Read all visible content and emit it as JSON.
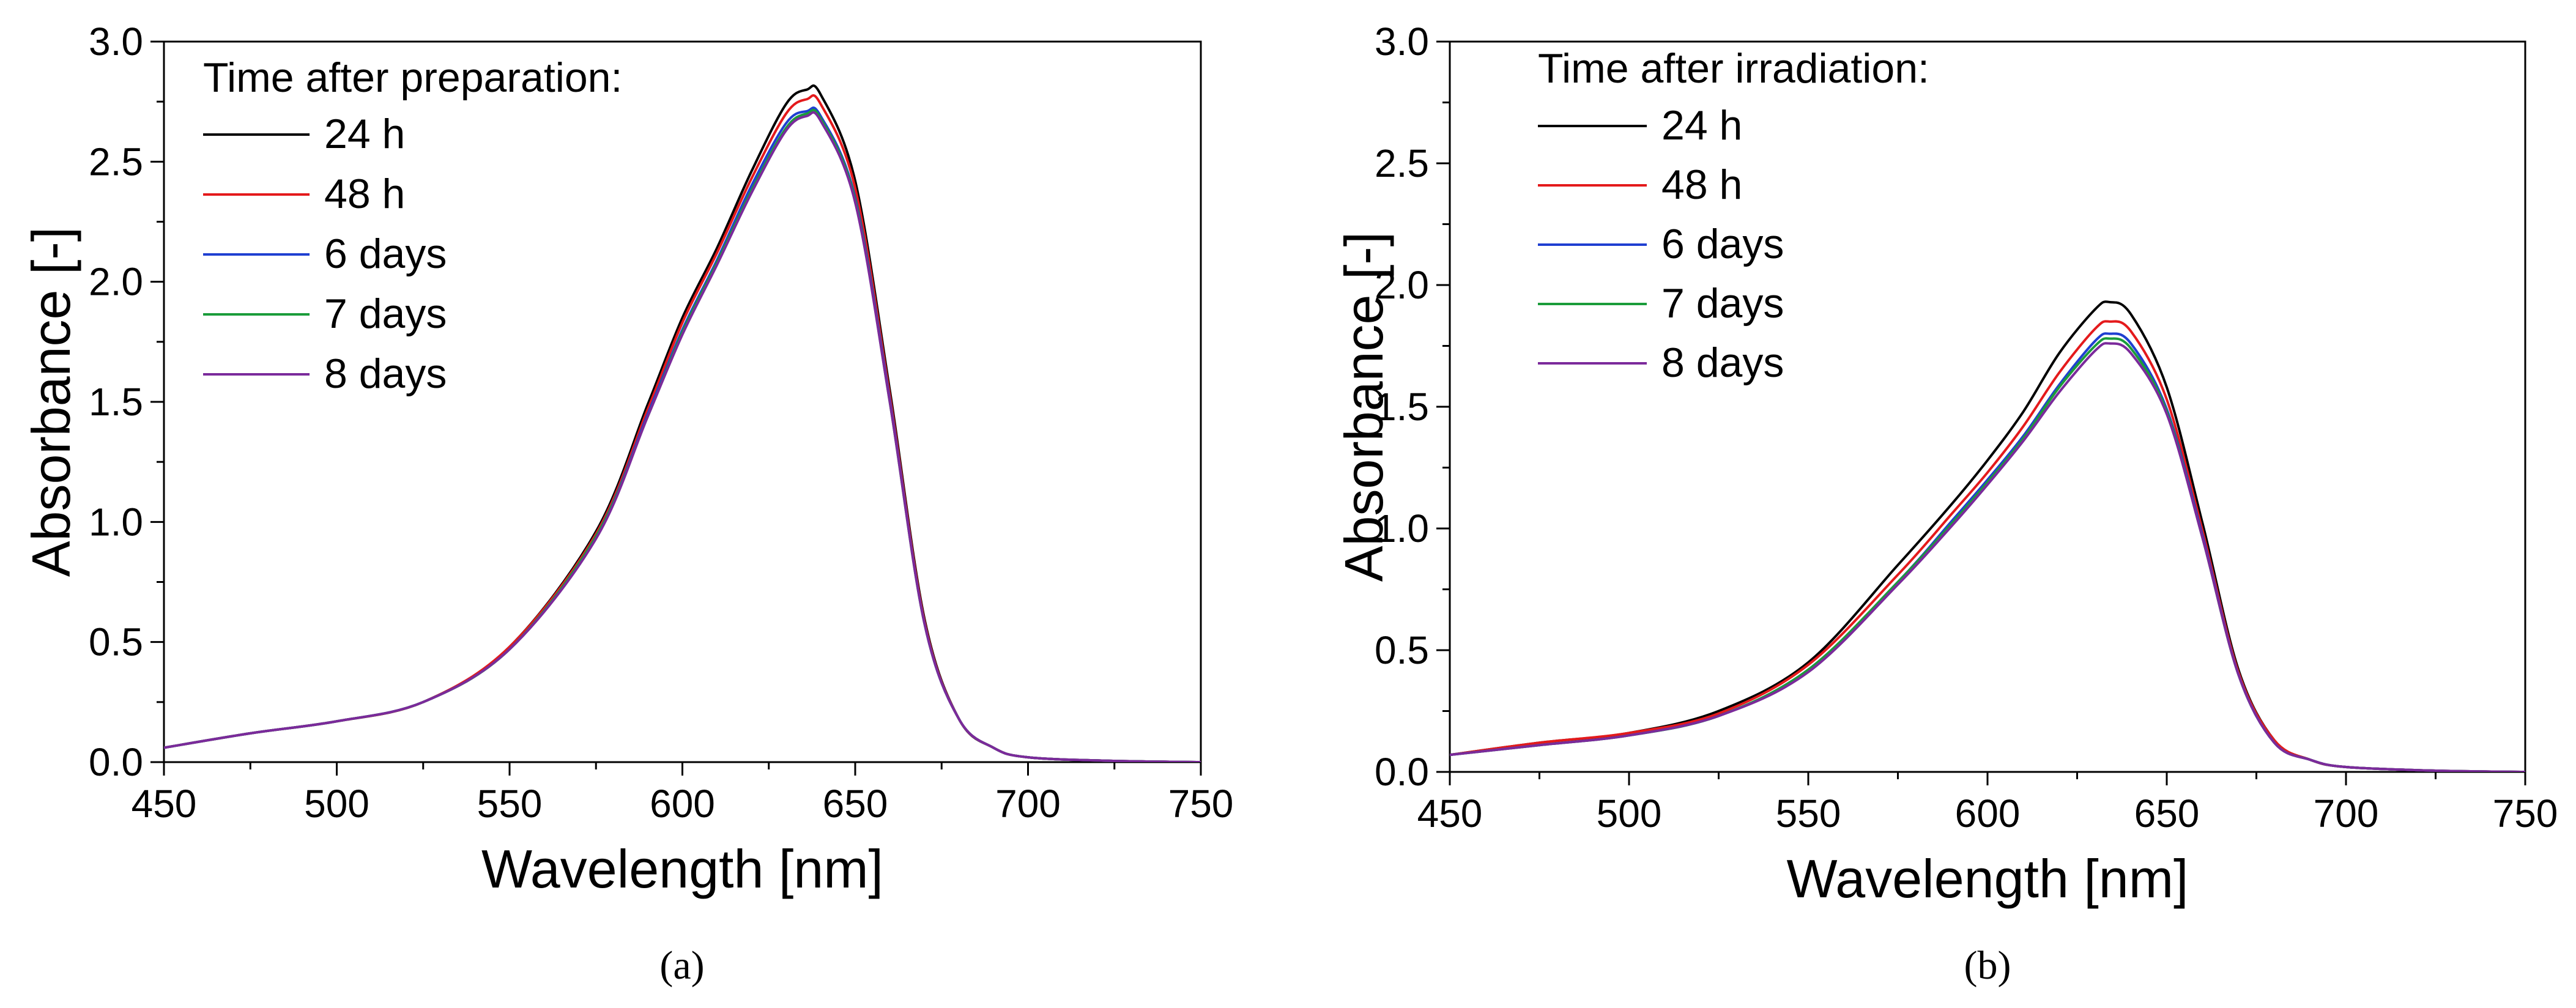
{
  "chart_data": [
    {
      "type": "line",
      "panel_label": "(a)",
      "xlabel": "Wavelength [nm]",
      "ylabel": "Absorbance [-]",
      "xlim": [
        450,
        750
      ],
      "ylim": [
        0,
        3.0
      ],
      "x_ticks": [
        "450",
        "500",
        "550",
        "600",
        "650",
        "700",
        "750"
      ],
      "y_ticks": [
        "0.0",
        "0.5",
        "1.0",
        "1.5",
        "2.0",
        "2.5",
        "3.0"
      ],
      "grid": false,
      "legend_title": "Time after preparation:",
      "legend_position": "top-left",
      "x": [
        450,
        475,
        500,
        525,
        550,
        575,
        590,
        600,
        610,
        620,
        630,
        636,
        640,
        650,
        660,
        670,
        680,
        690,
        700,
        725,
        750
      ],
      "series": [
        {
          "name": "24 h",
          "color": "#000000",
          "values": [
            0.06,
            0.12,
            0.17,
            0.25,
            0.48,
            0.96,
            1.49,
            1.85,
            2.14,
            2.46,
            2.74,
            2.8,
            2.78,
            2.42,
            1.55,
            0.6,
            0.18,
            0.06,
            0.02,
            0.005,
            0.0
          ]
        },
        {
          "name": "48 h",
          "color": "#e41a1c",
          "values": [
            0.06,
            0.12,
            0.17,
            0.25,
            0.48,
            0.95,
            1.47,
            1.83,
            2.12,
            2.43,
            2.7,
            2.76,
            2.74,
            2.39,
            1.53,
            0.59,
            0.18,
            0.06,
            0.02,
            0.005,
            0.0
          ]
        },
        {
          "name": "6 days",
          "color": "#1f3fd1",
          "values": [
            0.06,
            0.12,
            0.17,
            0.25,
            0.47,
            0.94,
            1.45,
            1.8,
            2.09,
            2.4,
            2.66,
            2.71,
            2.69,
            2.35,
            1.51,
            0.58,
            0.18,
            0.06,
            0.02,
            0.005,
            0.0
          ]
        },
        {
          "name": "7 days",
          "color": "#1a9c3a",
          "values": [
            0.06,
            0.12,
            0.17,
            0.25,
            0.47,
            0.94,
            1.44,
            1.79,
            2.08,
            2.38,
            2.64,
            2.7,
            2.68,
            2.34,
            1.5,
            0.58,
            0.18,
            0.06,
            0.02,
            0.005,
            0.0
          ]
        },
        {
          "name": "8 days",
          "color": "#7b2a9b",
          "values": [
            0.06,
            0.12,
            0.17,
            0.25,
            0.47,
            0.93,
            1.44,
            1.78,
            2.07,
            2.37,
            2.63,
            2.69,
            2.67,
            2.33,
            1.5,
            0.58,
            0.18,
            0.06,
            0.02,
            0.005,
            0.0
          ]
        }
      ]
    },
    {
      "type": "line",
      "panel_label": "(b)",
      "xlabel": "Wavelength [nm]",
      "ylabel": "Absorbance [-]",
      "xlim": [
        450,
        750
      ],
      "ylim": [
        0,
        3.0
      ],
      "x_ticks": [
        "450",
        "500",
        "550",
        "600",
        "650",
        "700",
        "750"
      ],
      "y_ticks": [
        "0.0",
        "0.5",
        "1.0",
        "1.5",
        "2.0",
        "2.5",
        "3.0"
      ],
      "grid": false,
      "legend_title": "Time after irradiation:",
      "legend_position": "top-left",
      "x": [
        450,
        475,
        500,
        525,
        550,
        575,
        590,
        600,
        610,
        620,
        630,
        634,
        640,
        650,
        660,
        670,
        680,
        690,
        700,
        725,
        750
      ],
      "series": [
        {
          "name": "24 h",
          "color": "#000000",
          "values": [
            0.07,
            0.12,
            0.16,
            0.25,
            0.45,
            0.85,
            1.1,
            1.28,
            1.48,
            1.72,
            1.9,
            1.93,
            1.88,
            1.58,
            1.02,
            0.42,
            0.13,
            0.05,
            0.02,
            0.005,
            0.0
          ]
        },
        {
          "name": "48 h",
          "color": "#e41a1c",
          "values": [
            0.07,
            0.12,
            0.16,
            0.24,
            0.44,
            0.81,
            1.06,
            1.23,
            1.42,
            1.64,
            1.82,
            1.85,
            1.81,
            1.53,
            0.99,
            0.41,
            0.13,
            0.05,
            0.02,
            0.005,
            0.0
          ]
        },
        {
          "name": "6 days",
          "color": "#1f3fd1",
          "values": [
            0.07,
            0.11,
            0.15,
            0.23,
            0.42,
            0.78,
            1.03,
            1.2,
            1.38,
            1.59,
            1.77,
            1.8,
            1.76,
            1.49,
            0.97,
            0.4,
            0.12,
            0.05,
            0.02,
            0.005,
            0.0
          ]
        },
        {
          "name": "7 days",
          "color": "#1a9c3a",
          "values": [
            0.07,
            0.11,
            0.15,
            0.23,
            0.42,
            0.78,
            1.02,
            1.19,
            1.37,
            1.58,
            1.75,
            1.78,
            1.74,
            1.48,
            0.96,
            0.4,
            0.12,
            0.05,
            0.02,
            0.005,
            0.0
          ]
        },
        {
          "name": "8 days",
          "color": "#7b2a9b",
          "values": [
            0.07,
            0.11,
            0.15,
            0.23,
            0.41,
            0.77,
            1.01,
            1.18,
            1.36,
            1.56,
            1.73,
            1.76,
            1.72,
            1.47,
            0.96,
            0.4,
            0.12,
            0.05,
            0.02,
            0.005,
            0.0
          ]
        }
      ]
    }
  ]
}
